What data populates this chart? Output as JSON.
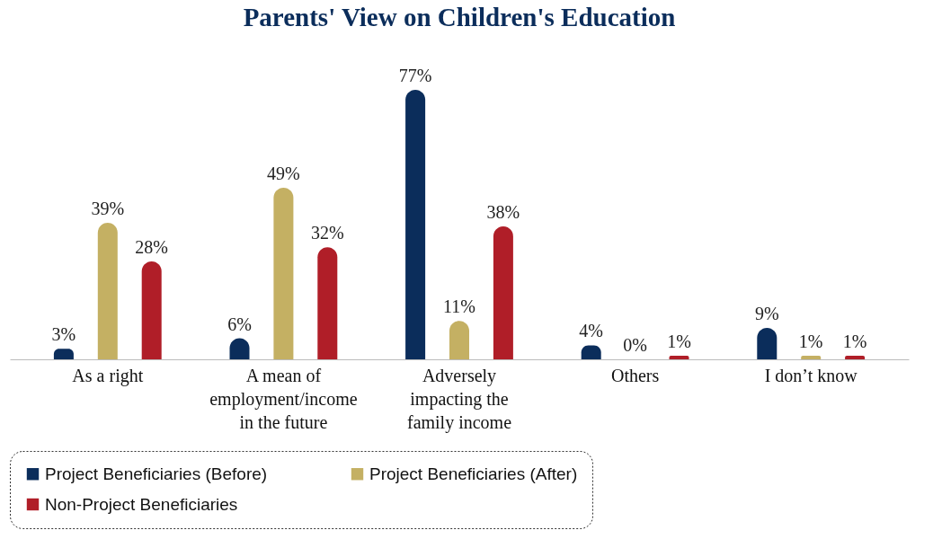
{
  "chart_data": {
    "type": "bar",
    "title": "Parents' View on Children's Education",
    "categories": [
      "As a right",
      "A mean of employment/income in the future",
      "Adversely impacting the family income",
      "Others",
      "I don’t know"
    ],
    "series": [
      {
        "name": "Project Beneficiaries (Before)",
        "color": "#0b2d5b",
        "values": [
          3,
          6,
          77,
          4,
          9
        ],
        "value_labels": [
          "3%",
          "6%",
          "77%",
          "4%",
          "9%"
        ]
      },
      {
        "name": "Project Beneficiaries (After)",
        "color": "#c4b063",
        "values": [
          39,
          49,
          11,
          0,
          1
        ],
        "value_labels": [
          "39%",
          "49%",
          "11%",
          "0%",
          "1%"
        ]
      },
      {
        "name": "Non-Project Beneficiaries",
        "color": "#b01e28",
        "values": [
          28,
          32,
          38,
          1,
          1
        ],
        "value_labels": [
          "28%",
          "32%",
          "38%",
          "1%",
          "1%"
        ]
      }
    ],
    "grid": false,
    "legend": "bottom"
  }
}
